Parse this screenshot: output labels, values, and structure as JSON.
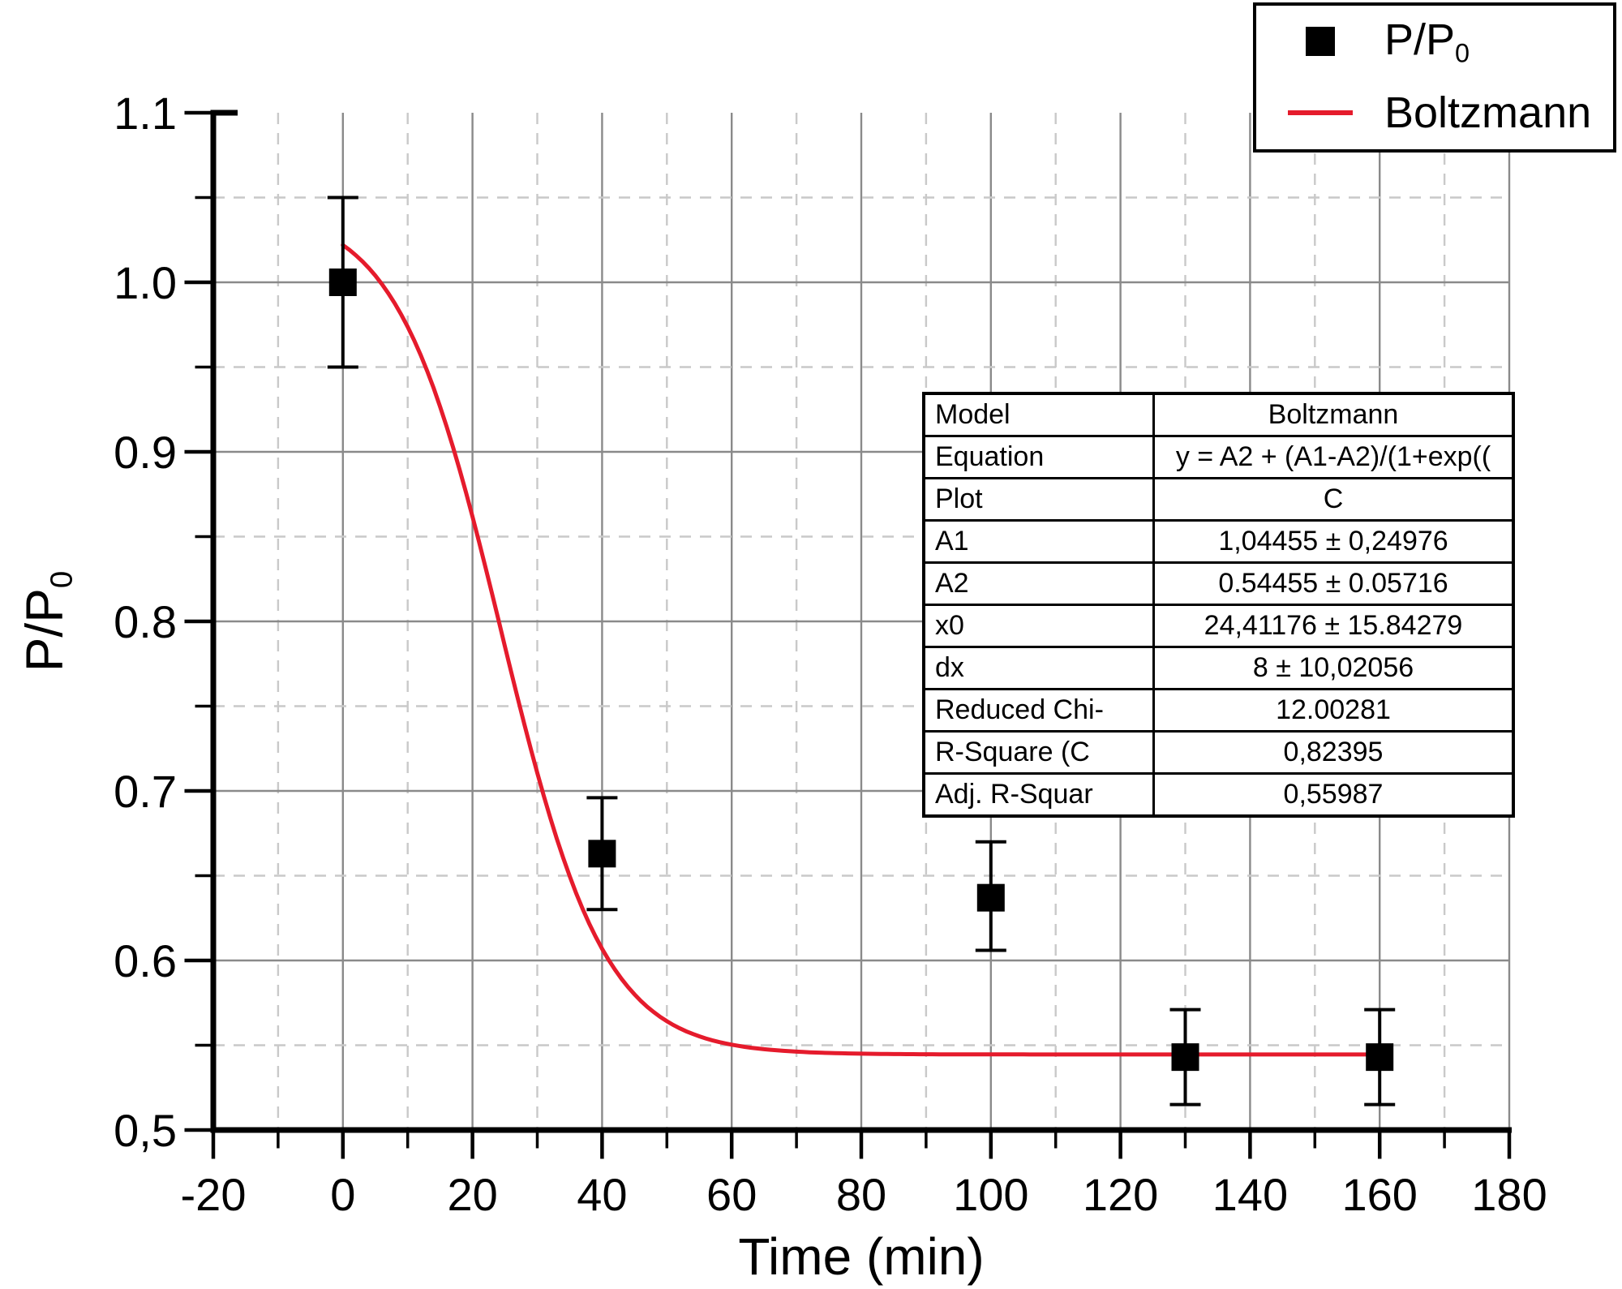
{
  "colors": {
    "background": "#ffffff",
    "accent_red": "#e51b2c",
    "grid_major": "#8a8a8a",
    "grid_minor": "#c9c9c9",
    "axis_black": "#000000"
  },
  "axes": {
    "x": {
      "title": "Time (min)"
    },
    "y": {
      "title_main": "P/P",
      "title_sub": "0"
    }
  },
  "legend": {
    "entries": [
      {
        "symbol": "filled-square",
        "label_main": "P/P",
        "label_sub": "0"
      },
      {
        "symbol": "red-line",
        "label_main": "Boltzmann",
        "label_sub": ""
      }
    ]
  },
  "stats_table": {
    "rows": [
      {
        "label": "Model",
        "value": "Boltzmann"
      },
      {
        "label": "Equation",
        "value": "y = A2 + (A1-A2)/(1+exp(("
      },
      {
        "label": "Plot",
        "value": "C"
      },
      {
        "label": "A1",
        "value": "1,04455 ± 0,24976"
      },
      {
        "label": "A2",
        "value": "0.54455 ± 0.05716"
      },
      {
        "label": "x0",
        "value": "24,41176 ± 15.84279"
      },
      {
        "label": "dx",
        "value": "8 ± 10,02056"
      },
      {
        "label": "Reduced Chi-",
        "value": "12.00281"
      },
      {
        "label": "R-Square (C",
        "value": "0,82395"
      },
      {
        "label": "Adj. R-Squar",
        "value": "0,55987"
      }
    ]
  },
  "chart_data": {
    "type": "scatter",
    "title": "",
    "xlabel": "Time (min)",
    "ylabel": "P/P0",
    "xlim": [
      -20,
      180
    ],
    "ylim": [
      0.5,
      1.1
    ],
    "x_major_step": 20,
    "x_minor_step": 10,
    "y_major_step": 0.1,
    "y_minor_step": 0.05,
    "grid": {
      "major": "solid",
      "minor": "dashed"
    },
    "legend_position": "top-right",
    "x_tick_values": [
      -20,
      0,
      20,
      40,
      60,
      80,
      100,
      120,
      140,
      160,
      180
    ],
    "x_tick_labels": [
      "-20",
      "0",
      "20",
      "40",
      "60",
      "80",
      "100",
      "120",
      "140",
      "160",
      "180"
    ],
    "y_tick_values": [
      1.1,
      1.0,
      0.9,
      0.8,
      0.7,
      0.6,
      0.5
    ],
    "y_tick_labels": [
      "1.1",
      "1.0",
      "0.9",
      "0.8",
      "0.7",
      "0.6",
      "0,5"
    ],
    "series": [
      {
        "name": "P/P0",
        "type": "scatter",
        "marker": "filled-square",
        "color": "#000000",
        "points": [
          {
            "x": 0,
            "y": 1.0,
            "err_plus": 0.05,
            "err_minus": 0.05
          },
          {
            "x": 40,
            "y": 0.663,
            "err_plus": 0.033,
            "err_minus": 0.033
          },
          {
            "x": 100,
            "y": 0.637,
            "err_plus": 0.033,
            "err_minus": 0.031
          },
          {
            "x": 130,
            "y": 0.543,
            "err_plus": 0.028,
            "err_minus": 0.028
          },
          {
            "x": 160,
            "y": 0.543,
            "err_plus": 0.028,
            "err_minus": 0.028
          }
        ]
      },
      {
        "name": "Boltzmann",
        "type": "line",
        "color": "#e51b2c",
        "x_start": 0,
        "x_end": 160,
        "fit_params": {
          "A1": 1.04455,
          "A2": 0.54455,
          "x0": 24.41176,
          "dx": 8
        }
      }
    ]
  }
}
